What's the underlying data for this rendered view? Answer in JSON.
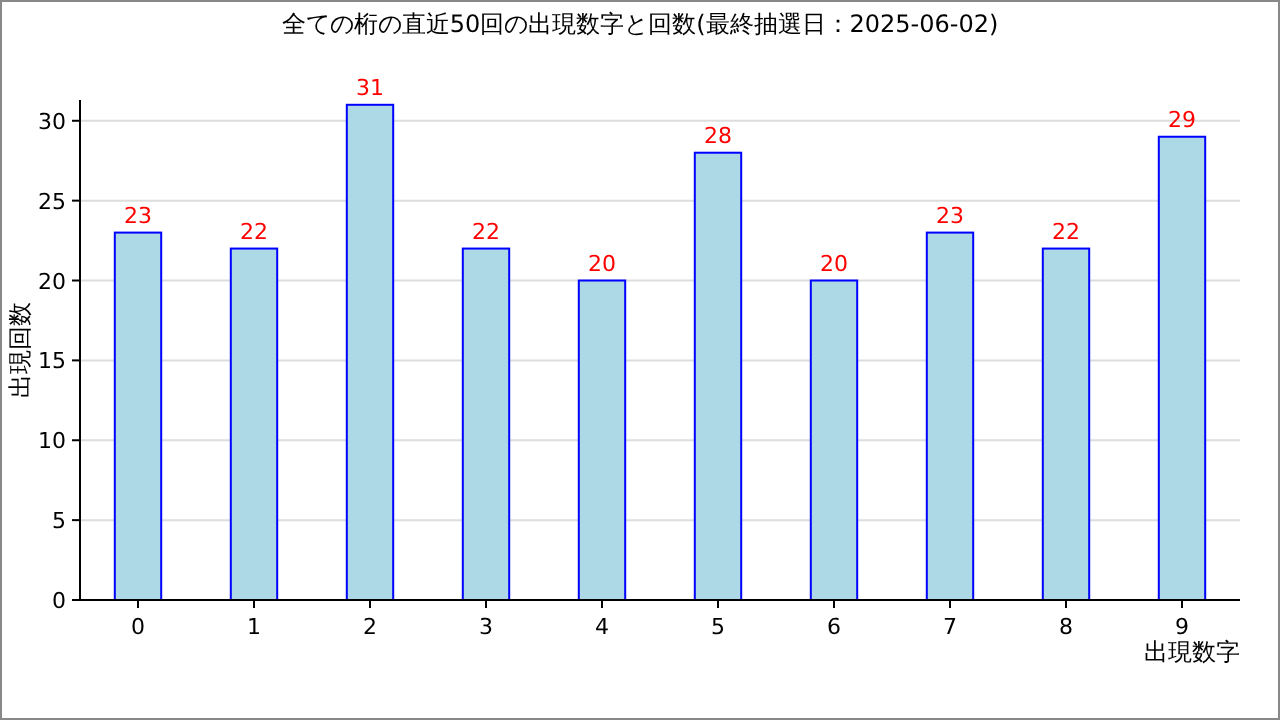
{
  "chart_data": {
    "type": "bar",
    "title": "全ての桁の直近50回の出現数字と回数(最終抽選日：2025-06-02)",
    "categories": [
      "0",
      "1",
      "2",
      "3",
      "4",
      "5",
      "6",
      "7",
      "8",
      "9"
    ],
    "values": [
      23,
      22,
      31,
      22,
      20,
      28,
      20,
      23,
      22,
      29
    ],
    "color": "#add8e6",
    "xlabel": "出現数字",
    "ylabel": "出現回数",
    "ylim": [
      0,
      31.3
    ],
    "yticks": [
      0,
      5,
      10,
      15,
      20,
      25,
      30
    ],
    "grid": "y",
    "data_labels": true
  }
}
